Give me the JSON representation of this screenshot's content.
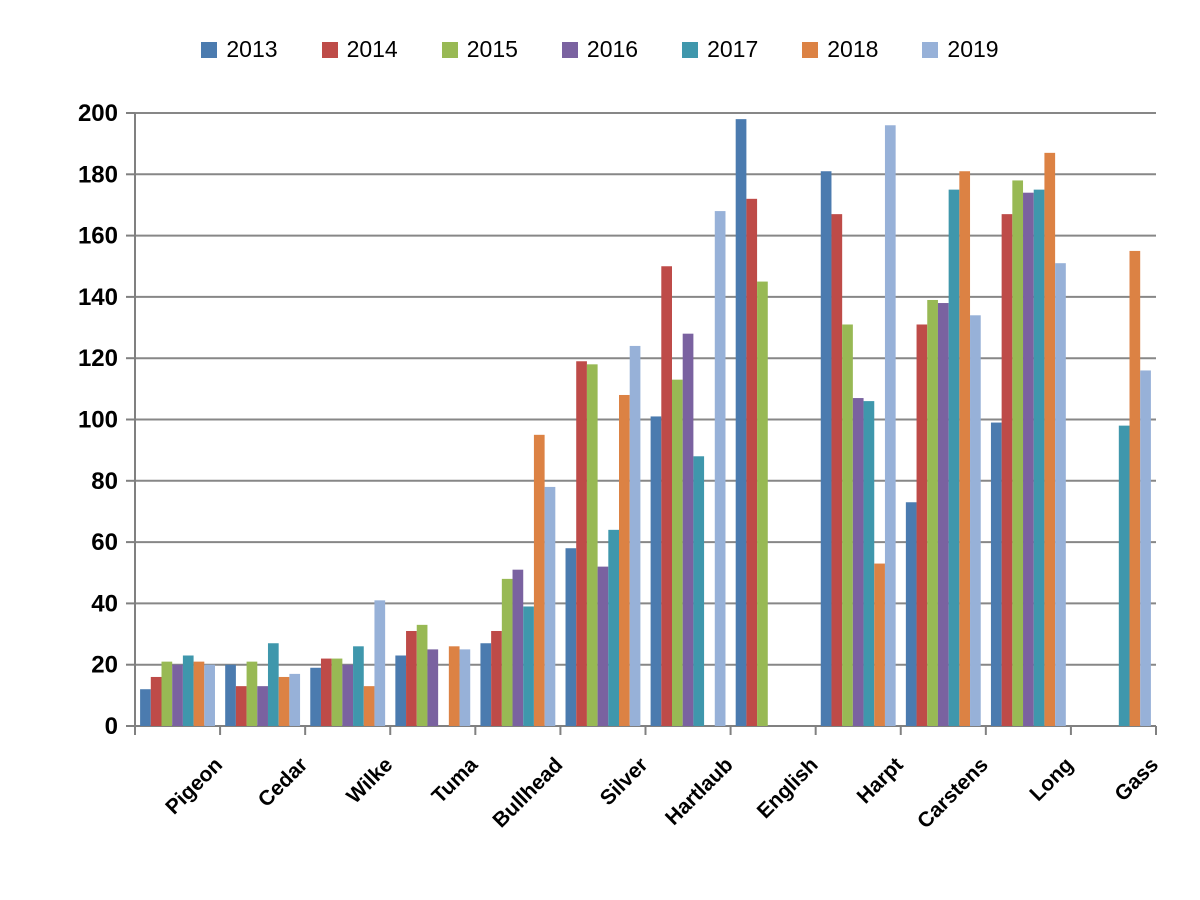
{
  "chart_data": {
    "type": "bar",
    "title": "",
    "xlabel": "",
    "ylabel": "",
    "categories": [
      "Pigeon",
      "Cedar",
      "Wilke",
      "Tuma",
      "Bullhead",
      "Silver",
      "Hartlaub",
      "English",
      "Harpt",
      "Carstens",
      "Long",
      "Gass"
    ],
    "series": [
      {
        "name": "2013",
        "color": "#4B7BAF",
        "values": [
          12,
          20,
          19,
          23,
          27,
          58,
          101,
          198,
          181,
          73,
          99,
          null
        ]
      },
      {
        "name": "2014",
        "color": "#BE4B48",
        "values": [
          16,
          13,
          22,
          31,
          31,
          119,
          150,
          172,
          167,
          131,
          167,
          null
        ]
      },
      {
        "name": "2015",
        "color": "#98B954",
        "values": [
          21,
          21,
          22,
          33,
          48,
          118,
          113,
          145,
          131,
          139,
          178,
          null
        ]
      },
      {
        "name": "2016",
        "color": "#7A62A0",
        "values": [
          20,
          13,
          20,
          25,
          51,
          52,
          128,
          null,
          107,
          138,
          174,
          null
        ]
      },
      {
        "name": "2017",
        "color": "#3F97AC",
        "values": [
          23,
          27,
          26,
          null,
          39,
          64,
          88,
          null,
          106,
          175,
          175,
          98
        ]
      },
      {
        "name": "2018",
        "color": "#DC8244",
        "values": [
          21,
          16,
          13,
          26,
          95,
          108,
          null,
          null,
          53,
          181,
          187,
          155
        ]
      },
      {
        "name": "2019",
        "color": "#97B1D8",
        "values": [
          20,
          17,
          41,
          25,
          78,
          124,
          168,
          null,
          196,
          134,
          151,
          116
        ]
      }
    ],
    "ylim": [
      0,
      200
    ],
    "ytick_step": 20,
    "ytick_labels": [
      "0",
      "20",
      "40",
      "60",
      "80",
      "100",
      "120",
      "140",
      "160",
      "180",
      "200"
    ],
    "legend_position": "top",
    "grid": "horizontal",
    "gridline_color": "#878787",
    "axis_color": "#808080",
    "text_color": "#000000",
    "background_color": "#ffffff"
  }
}
